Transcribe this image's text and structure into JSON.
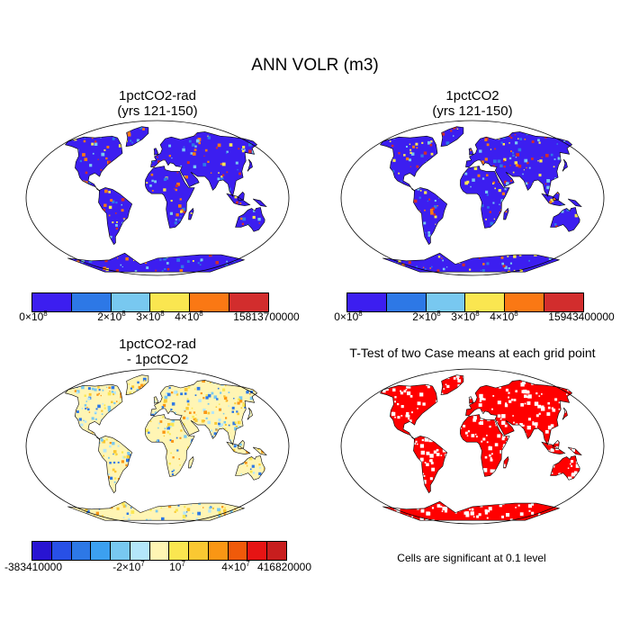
{
  "figure": {
    "title": "ANN VOLR (m3)",
    "panels": [
      {
        "id": "p1",
        "title_line1": "1pctCO2-rad",
        "title_line2": "(yrs 121-150)"
      },
      {
        "id": "p2",
        "title_line1": "1pctCO2",
        "title_line2": "(yrs 121-150)"
      },
      {
        "id": "p3",
        "title_line1": "1pctCO2-rad",
        "title_line2": "- 1pctCO2"
      },
      {
        "id": "p4",
        "title_line1": "T-Test of two Case means at each grid point",
        "title_line2": ""
      }
    ],
    "note": "Cells are significant at 0.1 level"
  },
  "colorbars": {
    "cb1": {
      "colors": [
        "#3c1ef0",
        "#2d78e6",
        "#78c8f0",
        "#fae650",
        "#fa7814",
        "#d22d2d"
      ],
      "labels": [
        {
          "key": "a",
          "text": "0×10",
          "sup": "8"
        },
        {
          "key": "b",
          "text": "2×10",
          "sup": "8"
        },
        {
          "key": "c",
          "text": "3×10",
          "sup": "8"
        },
        {
          "key": "d",
          "text": "4×10",
          "sup": "8"
        },
        {
          "key": "e",
          "text": "15813700000",
          "sup": ""
        }
      ]
    },
    "cb2": {
      "colors": [
        "#3c1ef0",
        "#2d78e6",
        "#78c8f0",
        "#fae650",
        "#fa7814",
        "#d22d2d"
      ],
      "labels": [
        {
          "key": "a",
          "text": "0×10",
          "sup": "8"
        },
        {
          "key": "b",
          "text": "2×10",
          "sup": "8"
        },
        {
          "key": "c",
          "text": "3×10",
          "sup": "8"
        },
        {
          "key": "d",
          "text": "4×10",
          "sup": "8"
        },
        {
          "key": "e",
          "text": "15943400000",
          "sup": ""
        }
      ]
    },
    "cb3": {
      "colors": [
        "#2814d2",
        "#2850e6",
        "#2d78e6",
        "#3ca0f0",
        "#78c8f0",
        "#b4e6fa",
        "#fff5b4",
        "#fae650",
        "#fac832",
        "#fa9614",
        "#f05a0a",
        "#e61414",
        "#c81e1e"
      ],
      "labels": [
        {
          "key": "a",
          "text": "-383410000",
          "sup": ""
        },
        {
          "key": "b",
          "text": "-2×10",
          "sup": "7"
        },
        {
          "key": "c",
          "text": "10",
          "sup": "7"
        },
        {
          "key": "d",
          "text": "4×10",
          "sup": "7"
        },
        {
          "key": "e",
          "text": "416820000",
          "sup": ""
        }
      ]
    }
  },
  "map_colors": {
    "ocean": "#ffffff",
    "abs_base": "#3c1ef0",
    "abs_hot": [
      "#2d78e6",
      "#78c8f0",
      "#fae650",
      "#fa7814",
      "#d22d2d"
    ],
    "diff_base": "#fff5b4",
    "diff_mix": [
      "#b4e6fa",
      "#78c8f0",
      "#fae650",
      "#fac832",
      "#fa9614",
      "#2d78e6"
    ],
    "sig": "#ff0000"
  }
}
